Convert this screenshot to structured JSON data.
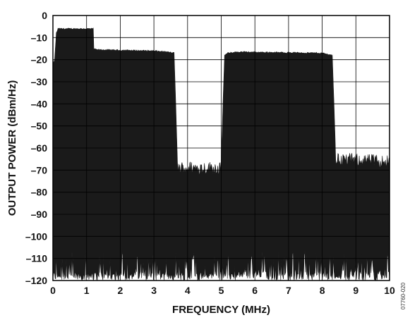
{
  "chart_data": {
    "type": "area",
    "title": "",
    "xlabel": "FREQUENCY (MHz)",
    "ylabel": "OUTPUT POWER (dBm/Hz)",
    "xlim": [
      0,
      10
    ],
    "ylim": [
      -120,
      0
    ],
    "xticks": [
      0,
      1,
      2,
      3,
      4,
      5,
      6,
      7,
      8,
      9,
      10
    ],
    "yticks": [
      0,
      -10,
      -20,
      -30,
      -40,
      -50,
      -60,
      -70,
      -80,
      -90,
      -100,
      -110,
      -120
    ],
    "grid": true,
    "legend": "none",
    "color": "#1a1a1a",
    "noise_floor_low": -120,
    "series": [
      {
        "x": [
          0.0,
          0.05,
          0.1,
          0.15,
          0.2,
          1.2,
          1.21,
          1.3,
          3.0,
          3.4,
          3.6,
          3.65,
          3.7,
          5.0,
          5.05,
          5.1,
          5.2,
          5.5,
          8.0,
          8.3,
          8.35,
          8.4,
          10.0
        ],
        "y": [
          -22,
          -20,
          -8,
          -6,
          -6,
          -6,
          -15,
          -15.5,
          -16,
          -16.5,
          -17,
          -40,
          -69,
          -69,
          -40,
          -18,
          -17,
          -16.5,
          -17,
          -18,
          -40,
          -65,
          -66
        ]
      }
    ],
    "figure_id": "07760-020"
  }
}
